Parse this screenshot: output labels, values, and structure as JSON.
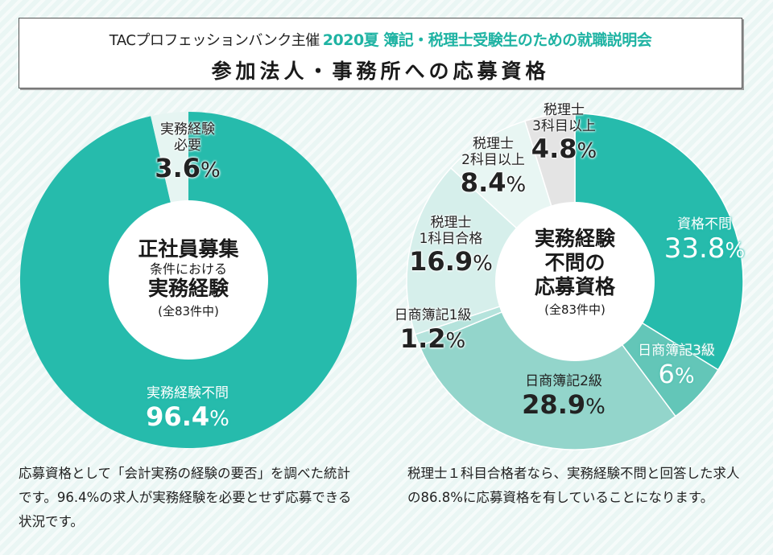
{
  "header": {
    "organizer": "TACプロフェッションバンク主催",
    "event": "2020夏 簿記・税理士受験生のための就職説明会",
    "title": "参加法人・事務所への応募資格"
  },
  "colors": {
    "primary_teal": "#26bbac",
    "light_slice": "#e6f5f2",
    "gray_slice": "#e4e4e4"
  },
  "chart_data": [
    {
      "type": "pie",
      "variant": "donut",
      "title": "正社員募集 条件における 実務経験",
      "center": {
        "line1": "正社員募集",
        "line2": "条件における",
        "line3": "実務経験",
        "count": "(全83件中)"
      },
      "start": "top",
      "direction": "clockwise",
      "slices": [
        {
          "label": "実務経験不問",
          "value": 96.4,
          "display": "96.4",
          "color": "#26bbac"
        },
        {
          "label": "実務経験必要",
          "label_lines": [
            "実務経験",
            "必要"
          ],
          "value": 3.6,
          "display": "3.6",
          "color": "#e6f5f2"
        }
      ],
      "unit": "%"
    },
    {
      "type": "pie",
      "variant": "donut",
      "title": "実務経験不問の応募資格",
      "center": {
        "line1": "実務経験",
        "line2": "不問の",
        "line3": "応募資格",
        "count": "(全83件中)"
      },
      "start": "top",
      "direction": "clockwise",
      "slices": [
        {
          "label": "資格不問",
          "label_lines": [
            "資格不問"
          ],
          "value": 33.8,
          "display": "33.8",
          "color": "#26bbac"
        },
        {
          "label": "日商簿記3級",
          "label_lines": [
            "日商簿記3級"
          ],
          "value": 6,
          "display": "6",
          "color": "#63c6b8"
        },
        {
          "label": "日商簿記2級",
          "label_lines": [
            "日商簿記2級"
          ],
          "value": 28.9,
          "display": "28.9",
          "color": "#93d5cb"
        },
        {
          "label": "日商簿記1級",
          "label_lines": [
            "日商簿記1級"
          ],
          "value": 1.2,
          "display": "1.2",
          "color": "#b5e3dc"
        },
        {
          "label": "税理士1科目合格",
          "label_lines": [
            "税理士",
            "1科目合格"
          ],
          "value": 16.9,
          "display": "16.9",
          "color": "#d6efeb"
        },
        {
          "label": "税理士2科目以上",
          "label_lines": [
            "税理士",
            "2科目以上"
          ],
          "value": 8.4,
          "display": "8.4",
          "color": "#e8f6f3"
        },
        {
          "label": "税理士3科目以上",
          "label_lines": [
            "税理士",
            "3科目以上"
          ],
          "value": 4.8,
          "display": "4.8",
          "color": "#e4e4e4"
        }
      ],
      "unit": "%"
    }
  ],
  "notes": {
    "left": "応募資格として「会計実務の経験の要否」を調べた統計です。96.4%の求人が実務経験を必要とせず応募できる状況です。",
    "right": "税理士１科目合格者なら、実務経験不問と回答した求人の86.8%に応募資格を有していることになります。"
  }
}
